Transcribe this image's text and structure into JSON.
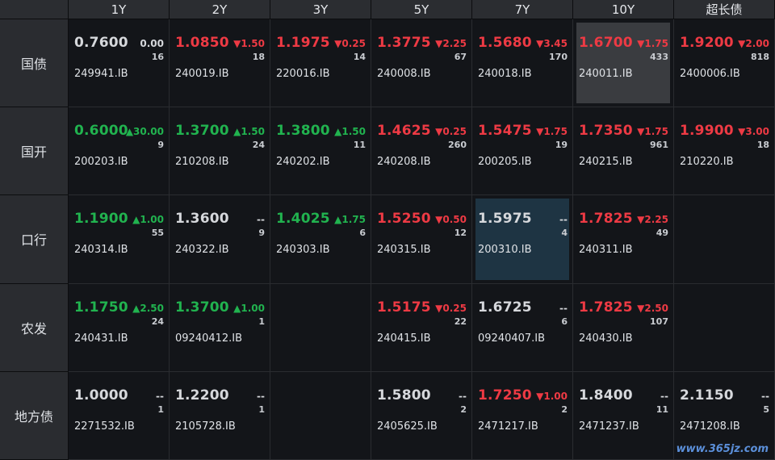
{
  "columns": [
    "1Y",
    "2Y",
    "3Y",
    "5Y",
    "7Y",
    "10Y",
    "超长债"
  ],
  "colors": {
    "up": "#21b34f",
    "down": "#ee3a44",
    "flat": "#d6d8dc"
  },
  "rows": [
    {
      "label": "国债",
      "cells": [
        {
          "rate": "0.7600",
          "change": "0.00",
          "count": "16",
          "code": "249941.IB",
          "dir": "flat"
        },
        {
          "rate": "1.0850",
          "change": "▼1.50",
          "count": "18",
          "code": "240019.IB",
          "dir": "down"
        },
        {
          "rate": "1.1975",
          "change": "▼0.25",
          "count": "14",
          "code": "220016.IB",
          "dir": "down"
        },
        {
          "rate": "1.3775",
          "change": "▼2.25",
          "count": "67",
          "code": "240008.IB",
          "dir": "down"
        },
        {
          "rate": "1.5680",
          "change": "▼3.45",
          "count": "170",
          "code": "240018.IB",
          "dir": "down"
        },
        {
          "rate": "1.6700",
          "change": "▼1.75",
          "count": "433",
          "code": "240011.IB",
          "dir": "down",
          "selected": "gray"
        },
        {
          "rate": "1.9200",
          "change": "▼2.00",
          "count": "818",
          "code": "2400006.IB",
          "dir": "down"
        }
      ]
    },
    {
      "label": "国开",
      "cells": [
        {
          "rate": "0.6000",
          "change": "▲30.00",
          "count": "9",
          "code": "200203.IB",
          "dir": "up"
        },
        {
          "rate": "1.3700",
          "change": "▲1.50",
          "count": "24",
          "code": "210208.IB",
          "dir": "up"
        },
        {
          "rate": "1.3800",
          "change": "▲1.50",
          "count": "11",
          "code": "240202.IB",
          "dir": "up"
        },
        {
          "rate": "1.4625",
          "change": "▼0.25",
          "count": "260",
          "code": "240208.IB",
          "dir": "down"
        },
        {
          "rate": "1.5475",
          "change": "▼1.75",
          "count": "19",
          "code": "200205.IB",
          "dir": "down"
        },
        {
          "rate": "1.7350",
          "change": "▼1.75",
          "count": "961",
          "code": "240215.IB",
          "dir": "down"
        },
        {
          "rate": "1.9900",
          "change": "▼3.00",
          "count": "18",
          "code": "210220.IB",
          "dir": "down"
        }
      ]
    },
    {
      "label": "口行",
      "cells": [
        {
          "rate": "1.1900",
          "change": "▲1.00",
          "count": "55",
          "code": "240314.IB",
          "dir": "up"
        },
        {
          "rate": "1.3600",
          "change": "--",
          "count": "9",
          "code": "240322.IB",
          "dir": "flat"
        },
        {
          "rate": "1.4025",
          "change": "▲1.75",
          "count": "6",
          "code": "240303.IB",
          "dir": "up"
        },
        {
          "rate": "1.5250",
          "change": "▼0.50",
          "count": "12",
          "code": "240315.IB",
          "dir": "down"
        },
        {
          "rate": "1.5975",
          "change": "--",
          "count": "4",
          "code": "200310.IB",
          "dir": "flat",
          "selected": "blue"
        },
        {
          "rate": "1.7825",
          "change": "▼2.25",
          "count": "49",
          "code": "240311.IB",
          "dir": "down"
        },
        null
      ]
    },
    {
      "label": "农发",
      "cells": [
        {
          "rate": "1.1750",
          "change": "▲2.50",
          "count": "24",
          "code": "240431.IB",
          "dir": "up"
        },
        {
          "rate": "1.3700",
          "change": "▲1.00",
          "count": "1",
          "code": "09240412.IB",
          "dir": "up"
        },
        null,
        {
          "rate": "1.5175",
          "change": "▼0.25",
          "count": "22",
          "code": "240415.IB",
          "dir": "down"
        },
        {
          "rate": "1.6725",
          "change": "--",
          "count": "6",
          "code": "09240407.IB",
          "dir": "flat"
        },
        {
          "rate": "1.7825",
          "change": "▼2.50",
          "count": "107",
          "code": "240430.IB",
          "dir": "down"
        },
        null
      ]
    },
    {
      "label": "地方债",
      "cells": [
        {
          "rate": "1.0000",
          "change": "--",
          "count": "1",
          "code": "2271532.IB",
          "dir": "flat"
        },
        {
          "rate": "1.2200",
          "change": "--",
          "count": "1",
          "code": "2105728.IB",
          "dir": "flat"
        },
        null,
        {
          "rate": "1.5800",
          "change": "--",
          "count": "2",
          "code": "2405625.IB",
          "dir": "flat"
        },
        {
          "rate": "1.7250",
          "change": "▼1.00",
          "count": "2",
          "code": "2471217.IB",
          "dir": "down"
        },
        {
          "rate": "1.8400",
          "change": "--",
          "count": "11",
          "code": "2471237.IB",
          "dir": "flat"
        },
        {
          "rate": "2.1150",
          "change": "--",
          "count": "5",
          "code": "2471208.IB",
          "dir": "flat"
        }
      ]
    }
  ],
  "watermark": "www.365jz.com"
}
